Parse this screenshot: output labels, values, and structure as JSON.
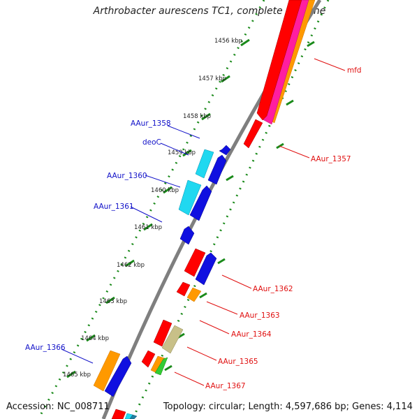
{
  "title": "Arthrobacter aurescens TC1, complete genome",
  "accession": "Accession: NC_008711",
  "topology": "Topology: circular; Length: 4,597,686 bp; Genes: 4,114",
  "colors": {
    "backbone": "#7f7f7f",
    "ruler": "#1a8a1a",
    "forward_label": "#e01010",
    "reverse_label": "#1010c8",
    "red": "#ff0000",
    "blue": "#1010e0",
    "cyan": "#20d8f0",
    "orange": "#ff9900",
    "magenta": "#ff1ea0",
    "khaki": "#c8c088",
    "green": "#33cc33",
    "teal": "#2080a0"
  },
  "ruler_labels": [
    "1456 kbp",
    "1457 kbp",
    "1458 kbp",
    "1459 kbp",
    "1460 kbp",
    "1461 kbp",
    "1462 kbp",
    "1463 kbp",
    "1464 kbp",
    "1465 kbp"
  ],
  "forward_labels": [
    "mfd",
    "AAur_1357",
    "AAur_1362",
    "AAur_1363",
    "AAur_1364",
    "AAur_1365",
    "AAur_1367"
  ],
  "reverse_labels": [
    "AAur_1358",
    "deoC",
    "AAur_1360",
    "AAur_1361",
    "AAur_1366"
  ]
}
